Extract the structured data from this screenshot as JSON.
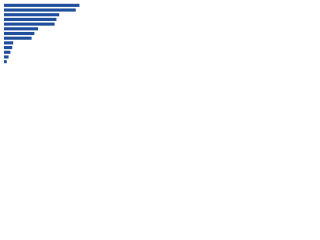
{
  "chart_data": {
    "type": "bar",
    "orientation": "horizontal",
    "categories": [
      null,
      null,
      null,
      null,
      null,
      null,
      null,
      null,
      null,
      null,
      null,
      null,
      null
    ],
    "values": [
      82,
      78,
      60,
      57,
      55,
      37,
      33,
      30,
      10,
      9,
      7,
      5,
      3
    ],
    "color": "#1f4e9c",
    "xlim": [
      0,
      100
    ]
  }
}
